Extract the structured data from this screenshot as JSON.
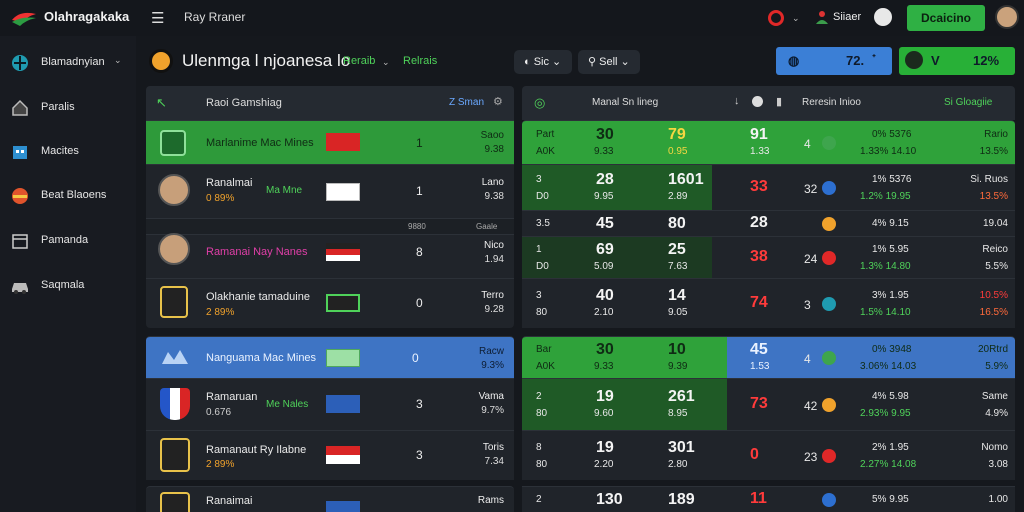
{
  "app": {
    "brand": "Olahragakaka",
    "nav_label": "Ray Rraner",
    "username": "Siiaer",
    "deposit_label": "Dcaicino"
  },
  "colors": {
    "green": "#28b037",
    "blue": "#3b7fd6",
    "red": "#e02828",
    "bg": "#15181d"
  },
  "sidebar": [
    {
      "label": "Blamadnyian",
      "icon": "globe-icon"
    },
    {
      "label": "Paralis",
      "icon": "home-icon"
    },
    {
      "label": "Macites",
      "icon": "building-icon"
    },
    {
      "label": "Beat Blaoens",
      "icon": "flag-icon"
    },
    {
      "label": "Pamanda",
      "icon": "box-icon"
    },
    {
      "label": "Saqmala",
      "icon": "car-icon"
    }
  ],
  "header": {
    "title": "Ulenmga l njoanesa lo",
    "sub1": "Reraib",
    "sub2": "Relrais",
    "pill1": "Sic",
    "pill2": "Sell",
    "blue_value": "72.",
    "green_left": "V",
    "green_value": "12%"
  },
  "left": {
    "head_title": "Raoi Gamshiag",
    "head_right": "Z Sman",
    "rows": [
      {
        "name": "Marlanime Mac Mines",
        "sub": "",
        "mid": "",
        "num": "1",
        "r1": "Saoo",
        "r2": "9.38"
      },
      {
        "name": "Ranalmai",
        "sub": "0 89%",
        "mid": "Ma Mne",
        "num": "1",
        "r1": "Lano",
        "r2": "9.38"
      },
      {
        "name": "Ramanai Nay Nanes",
        "sub": "",
        "mid": "",
        "num": "8",
        "r1": "Nico",
        "r2": "1.94"
      },
      {
        "name": "Olakhanie tamaduine",
        "sub": "2 89%",
        "mid": "",
        "num": "0",
        "r1": "Terro",
        "r2": "9.28"
      },
      {
        "name": "Nanguama Mac Mines",
        "sub": "",
        "mid": "",
        "num": "0",
        "r1": "Racw",
        "r2": "9.3%"
      },
      {
        "name": "Ramaruan",
        "sub": "0.676",
        "mid": "Me Nales",
        "num": "3",
        "r1": "Vama",
        "r2": "9.7%"
      },
      {
        "name": "Ramanaut Ry Ilabne",
        "sub": "2 89%",
        "mid": "",
        "num": "3",
        "r1": "Toris",
        "r2": "7.34"
      },
      {
        "name": "Ranaimai",
        "sub": "",
        "mid": "",
        "num": "",
        "r1": "Rams",
        "r2": ""
      }
    ],
    "sep_labels": {
      "a": "9880",
      "b": "Gaale"
    }
  },
  "right": {
    "head_left": "Manal Sn lineg",
    "head_mid": "Reresin Inioo",
    "head_right": "Si Gloagiie",
    "rows": [
      {
        "a": "Part",
        "a2": "A0K",
        "b": "30",
        "b2": "9.33",
        "c": "79",
        "c2": "0.95",
        "d": "91",
        "d2": "1.33",
        "e": "4",
        "f": "0%  5376",
        "f2": "1.33%  14.10",
        "g": "Rario",
        "g2": "13.5%"
      },
      {
        "a": "3",
        "a2": "D0",
        "b": "28",
        "b2": "9.95",
        "c": "1601",
        "c2": "2.89",
        "d": "33",
        "d2": "",
        "e": "32",
        "f": "1%  5376",
        "f2": "1.2%  19.95",
        "g": "Si. Ruos",
        "g2": "13.5%"
      },
      {
        "a": "3.5",
        "a2": "",
        "b": "45",
        "b2": "",
        "c": "80",
        "c2": "",
        "d": "28",
        "d2": "",
        "e": "",
        "f": "4%  9.15",
        "f2": "",
        "g": "19.04",
        "g2": ""
      },
      {
        "a": "1",
        "a2": "D0",
        "b": "69",
        "b2": "5.09",
        "c": "25",
        "c2": "7.63",
        "d": "38",
        "d2": "",
        "e": "24",
        "f": "1%  5.95",
        "f2": "1.3%  14.80",
        "g": "Reico",
        "g2": "5.5%"
      },
      {
        "a": "3",
        "a2": "80",
        "b": "40",
        "b2": "2.10",
        "c": "14",
        "c2": "9.05",
        "d": "74",
        "d2": "",
        "e": "3",
        "f": "3%  1.95",
        "f2": "1.5%  14.10",
        "g": "10.5%",
        "g2": "16.5%"
      },
      {
        "a": "Bar",
        "a2": "A0K",
        "b": "30",
        "b2": "9.33",
        "c": "10",
        "c2": "9.39",
        "d": "45",
        "d2": "1.53",
        "e": "4",
        "f": "0%  3948",
        "f2": "3.06%  14.03",
        "g": "20Rtrd",
        "g2": "5.9%"
      },
      {
        "a": "2",
        "a2": "80",
        "b": "19",
        "b2": "9.60",
        "c": "261",
        "c2": "8.95",
        "d": "73",
        "d2": "",
        "e": "42",
        "f": "4%  5.98",
        "f2": "2.93%  9.95",
        "g": "Same",
        "g2": "4.9%"
      },
      {
        "a": "8",
        "a2": "80",
        "b": "19",
        "b2": "2.20",
        "c": "301",
        "c2": "2.80",
        "d": "0",
        "d2": "",
        "e": "23",
        "f": "2%  1.95",
        "f2": "2.27%  14.08",
        "g": "Nomo",
        "g2": "3.08"
      },
      {
        "a": "2",
        "a2": "",
        "b": "130",
        "b2": "",
        "c": "189",
        "c2": "",
        "d": "11",
        "d2": "",
        "e": "",
        "f": "5%  9.95",
        "f2": "",
        "g": "1.00",
        "g2": ""
      }
    ]
  }
}
